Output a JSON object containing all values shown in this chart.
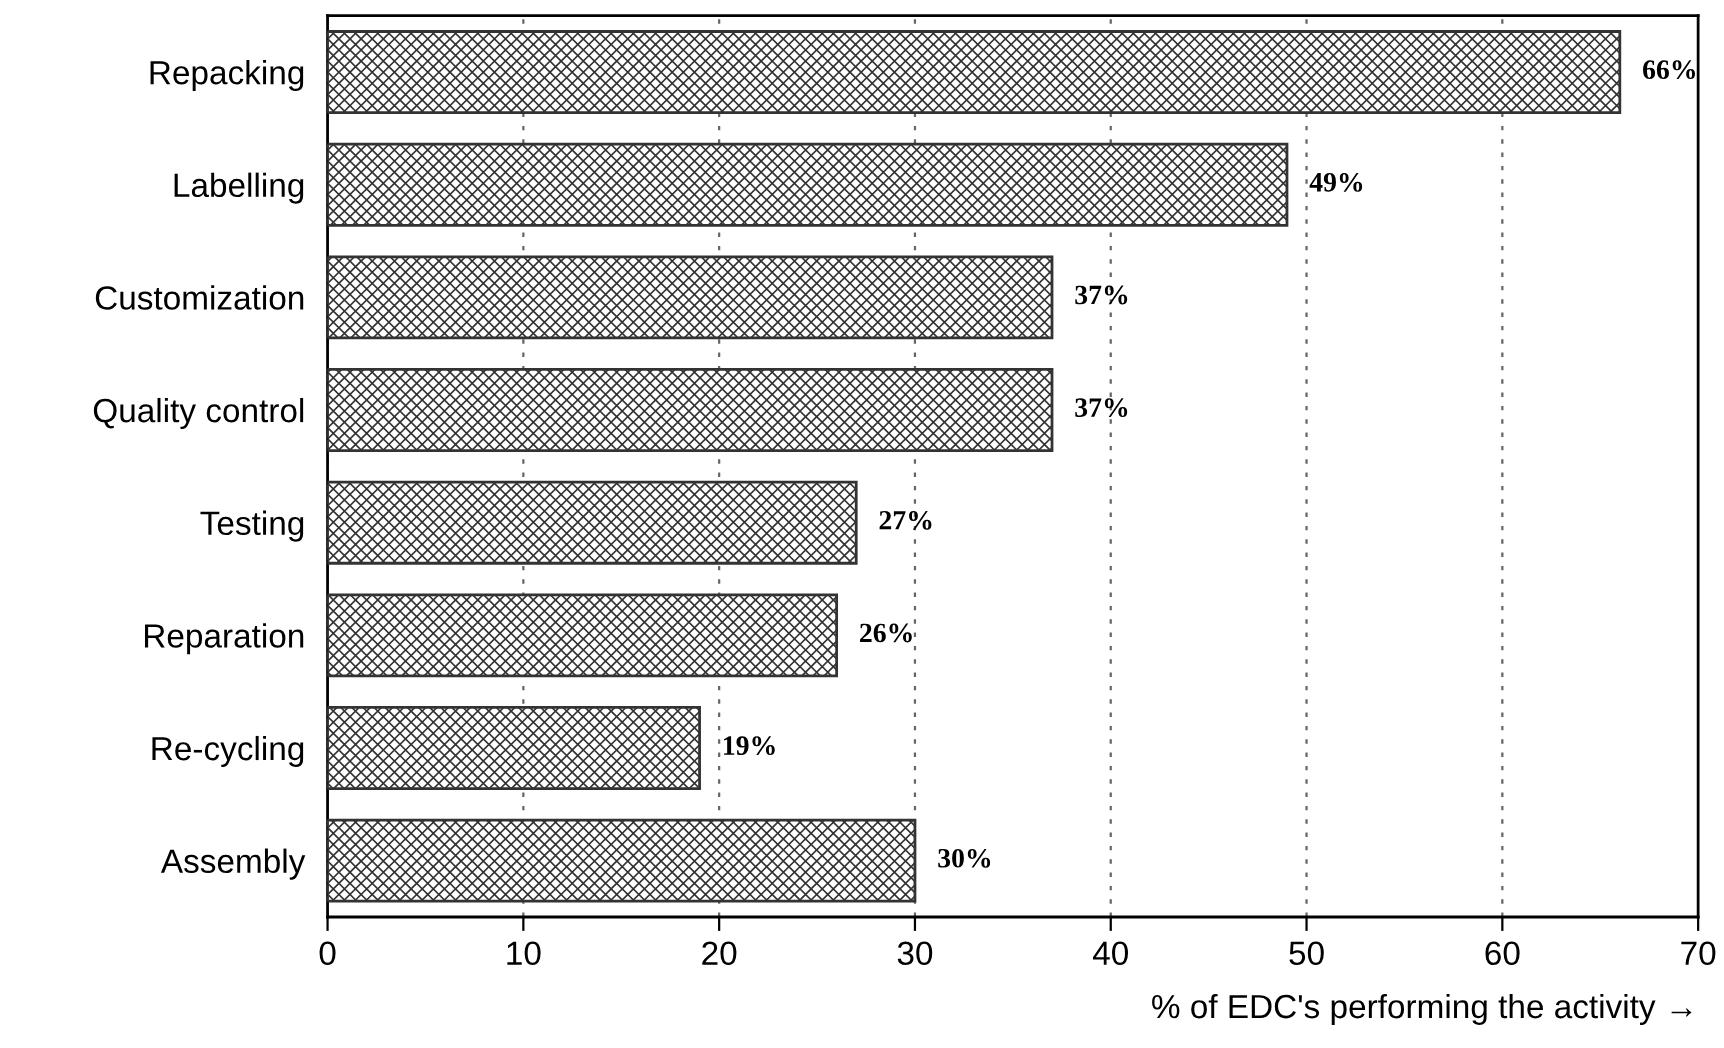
{
  "chart_data": {
    "type": "bar",
    "orientation": "horizontal",
    "categories": [
      "Repacking",
      "Labelling",
      "Customization",
      "Quality control",
      "Testing",
      "Reparation",
      "Re-cycling",
      "Assembly"
    ],
    "values": [
      66,
      49,
      37,
      37,
      27,
      26,
      19,
      30
    ],
    "value_labels": [
      "66%",
      "49%",
      "37%",
      "37%",
      "27%",
      "26%",
      "19%",
      "30%"
    ],
    "color": "#333333",
    "xlabel": "% of EDC's performing the activity →",
    "xlim": [
      0,
      70
    ],
    "xticks": [
      0,
      10,
      20,
      30,
      40,
      50,
      60,
      70
    ],
    "grid": "x",
    "legend": false
  }
}
